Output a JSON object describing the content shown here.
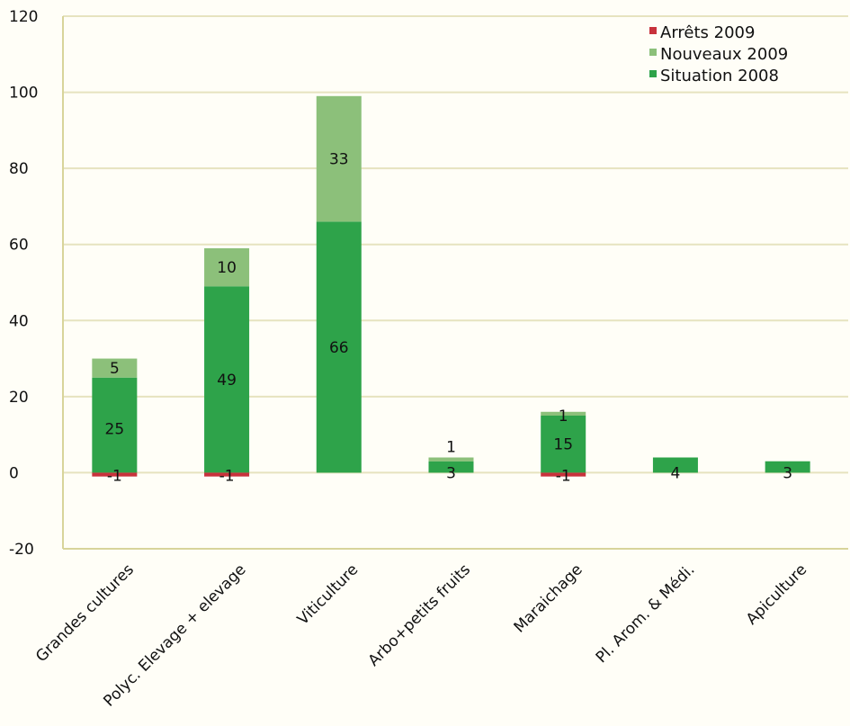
{
  "chart_data": {
    "type": "bar",
    "stacked": true,
    "title": "",
    "xlabel": "",
    "ylabel": "",
    "ylim": [
      -20,
      120
    ],
    "yticks": [
      -20,
      0,
      20,
      40,
      60,
      80,
      100,
      120
    ],
    "grid": true,
    "legend_position": "top-right",
    "categories": [
      "Grandes cultures",
      "Polyc. Elevage + elevage",
      "Viticulture",
      "Arbo+petits fruits",
      "Maraichage",
      "Pl. Arom. & Médi.",
      "Apiculture"
    ],
    "series": [
      {
        "name": "Arrêts 2009",
        "color": "#c8323c",
        "values": [
          -1,
          -1,
          0,
          0,
          -1,
          0,
          0
        ],
        "labels": [
          "-1",
          "-1",
          "",
          "",
          "-1",
          "",
          ""
        ]
      },
      {
        "name": "Nouveaux 2009",
        "color": "#8cc07a",
        "values": [
          5,
          10,
          33,
          1,
          1,
          0,
          0
        ],
        "labels": [
          "5",
          "10",
          "33",
          "1",
          "1",
          "",
          ""
        ]
      },
      {
        "name": "Situation 2008",
        "color": "#2ea34a",
        "values": [
          25,
          49,
          66,
          3,
          15,
          4,
          3
        ],
        "labels": [
          "25",
          "49",
          "66",
          "3",
          "15",
          "4",
          "3"
        ]
      }
    ],
    "legend_order": [
      "Arrêts 2009",
      "Nouveaux 2009",
      "Situation 2008"
    ]
  }
}
